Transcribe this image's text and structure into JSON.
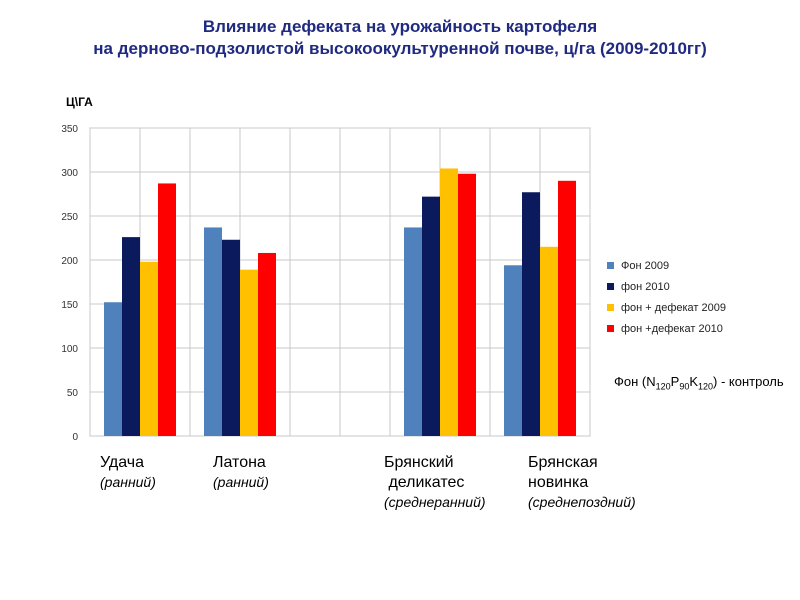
{
  "title": {
    "line1": "Влияние дефеката на урожайность картофеля",
    "line2": "на дерново-подзолистой  высокоокультуренной почве, ц/га (2009-2010гг)"
  },
  "chart_data": {
    "type": "bar",
    "ylabel": "Ц\\ГА",
    "ylim": [
      0,
      350
    ],
    "yticks": [
      0,
      50,
      100,
      150,
      200,
      250,
      300,
      350
    ],
    "grid": true,
    "legend_position": "right",
    "categories": [
      "Удача",
      "Латона",
      "",
      "Брянский деликатес",
      "Брянская новинка"
    ],
    "series": [
      {
        "name": "Фон 2009",
        "color": "#4f81bd",
        "values": [
          152,
          237,
          null,
          237,
          194
        ]
      },
      {
        "name": "фон 2010",
        "color": "#0b1a5c",
        "values": [
          226,
          223,
          null,
          272,
          277
        ]
      },
      {
        "name": "фон + дефекат 2009",
        "color": "#ffc000",
        "values": [
          198,
          189,
          null,
          304,
          215
        ]
      },
      {
        "name": "фон +дефекат 2010",
        "color": "#ff0000",
        "values": [
          287,
          208,
          null,
          298,
          290
        ]
      }
    ]
  },
  "category_labels": [
    {
      "name": "Удача",
      "sub": "(ранний)"
    },
    {
      "name": "Латона",
      "sub": "(ранний)"
    },
    {
      "name": "Брянский\n деликатес",
      "sub": "(среднеранний)"
    },
    {
      "name": "Брянская\nновинка",
      "sub": "(среднепоздний)"
    }
  ],
  "note": {
    "prefix": "Фон (N",
    "n": "120",
    "p_label": "P",
    "p": "90",
    "k_label": "K",
    "k": "120",
    "suffix": ") - контроль"
  }
}
